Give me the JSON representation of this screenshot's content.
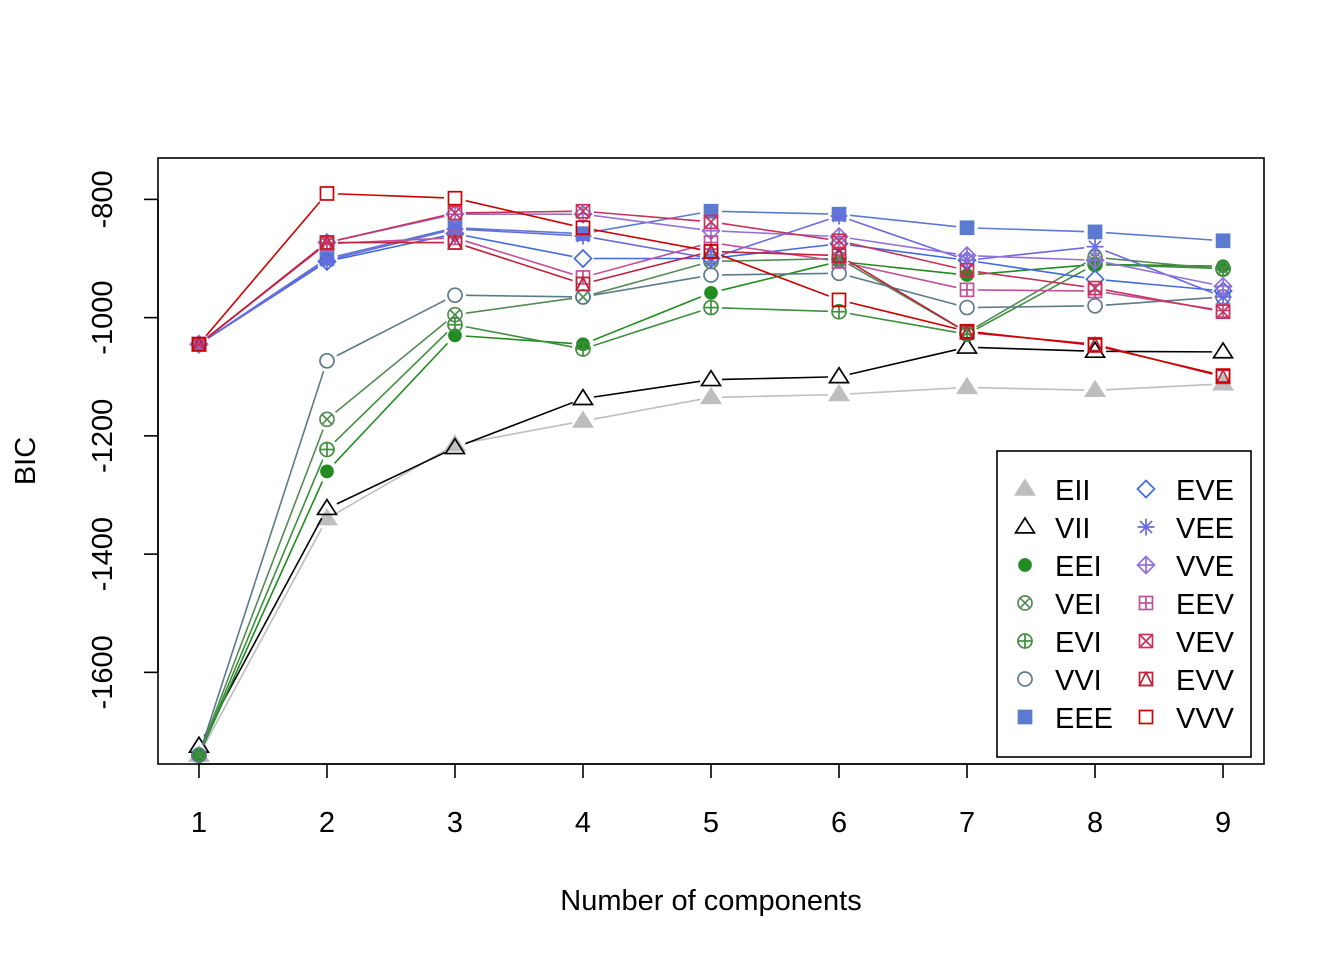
{
  "chart_data": {
    "type": "line",
    "title": "",
    "xlabel": "Number of components",
    "ylabel": "BIC",
    "x": [
      1,
      2,
      3,
      4,
      5,
      6,
      7,
      8,
      9
    ],
    "xticks": [
      "1",
      "2",
      "3",
      "4",
      "5",
      "6",
      "7",
      "8",
      "9"
    ],
    "yticks": [
      -1600,
      -1400,
      -1200,
      -1000,
      -800
    ],
    "ylim": [
      -1755,
      -730
    ],
    "grid": false,
    "legend_position": "bottom-right",
    "series": [
      {
        "name": "EII",
        "color": "#BEBEBE",
        "marker": "triangle-filled",
        "values": [
          -1740,
          -1340,
          -1215,
          -1175,
          -1135,
          -1130,
          -1118,
          -1123,
          -1112
        ]
      },
      {
        "name": "VII",
        "color": "#000000",
        "marker": "triangle-open",
        "values": [
          -1725,
          -1323,
          -1220,
          -1137,
          -1105,
          -1100,
          -1050,
          -1057,
          -1058
        ]
      },
      {
        "name": "EEI",
        "color": "#228B22",
        "marker": "circle-filled",
        "values": [
          -1740,
          -1260,
          -1030,
          -1045,
          -958,
          -905,
          -928,
          -910,
          -913
        ]
      },
      {
        "name": "VEI",
        "color": "#548B54",
        "marker": "circle-x",
        "values": [
          -1740,
          -1172,
          -995,
          -965,
          -905,
          -900,
          -1025,
          -898,
          -918
        ]
      },
      {
        "name": "EVI",
        "color": "#3E8E3E",
        "marker": "circle-plus",
        "values": [
          -1740,
          -1223,
          -1012,
          -1053,
          -983,
          -990,
          -1028,
          -910,
          -917
        ]
      },
      {
        "name": "VVI",
        "color": "#5C7B8A",
        "marker": "circle-open",
        "values": [
          -1740,
          -1073,
          -962,
          -965,
          -928,
          -925,
          -983,
          -980,
          -965
        ]
      },
      {
        "name": "EEE",
        "color": "#5B7BD0",
        "marker": "square-filled",
        "values": [
          -1045,
          -900,
          -848,
          -858,
          -820,
          -825,
          -848,
          -855,
          -870
        ]
      },
      {
        "name": "EVE",
        "color": "#4169E1",
        "marker": "diamond-open",
        "values": [
          -1045,
          -905,
          -858,
          -900,
          -900,
          -875,
          -903,
          -935,
          -955
        ]
      },
      {
        "name": "VEE",
        "color": "#6A6AE0",
        "marker": "asterisk",
        "values": [
          -1045,
          -903,
          -850,
          -862,
          -900,
          -828,
          -903,
          -880,
          -965
        ]
      },
      {
        "name": "VVE",
        "color": "#9370DB",
        "marker": "diamond-plus",
        "values": [
          -1045,
          -873,
          -825,
          -825,
          -853,
          -863,
          -895,
          -903,
          -947
        ]
      },
      {
        "name": "EEV",
        "color": "#C0509A",
        "marker": "square-plus",
        "values": [
          -1045,
          -875,
          -865,
          -932,
          -873,
          -905,
          -953,
          -955,
          -988
        ]
      },
      {
        "name": "VEV",
        "color": "#C8335A",
        "marker": "square-x",
        "values": [
          -1045,
          -873,
          -823,
          -820,
          -838,
          -870,
          -920,
          -950,
          -990
        ]
      },
      {
        "name": "EVV",
        "color": "#C0203A",
        "marker": "square-triangle",
        "values": [
          -1045,
          -873,
          -873,
          -943,
          -888,
          -895,
          -1025,
          -1045,
          -1100
        ]
      },
      {
        "name": "VVV",
        "color": "#CC0000",
        "marker": "square-open",
        "values": [
          -1045,
          -790,
          -798,
          -848,
          -888,
          -970,
          -1023,
          -1047,
          -1098
        ]
      }
    ]
  }
}
